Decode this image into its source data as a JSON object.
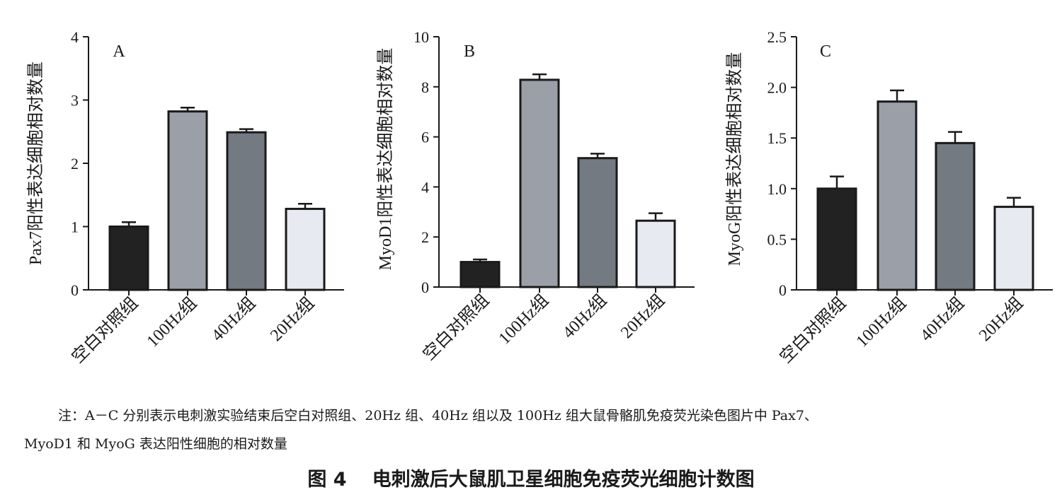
{
  "chart_data": [
    {
      "type": "bar",
      "panel_label": "A",
      "ylabel": "Pax7阳性表达细胞相对数量",
      "categories": [
        "空白对照组",
        "100Hz组",
        "40Hz组",
        "20Hz组"
      ],
      "values": [
        1.0,
        2.82,
        2.49,
        1.28
      ],
      "errors": [
        0.07,
        0.06,
        0.05,
        0.08
      ],
      "ylim": [
        0,
        4
      ],
      "yticks": [
        0,
        1,
        2,
        3,
        4
      ],
      "ytick_labels": [
        "0",
        "1",
        "2",
        "3",
        "4"
      ],
      "bar_colors": [
        "#222222",
        "#9a9fa8",
        "#747a82",
        "#e7ebf1"
      ]
    },
    {
      "type": "bar",
      "panel_label": "B",
      "ylabel": "MyoD1阳性表达细胞相对数量",
      "categories": [
        "空白对照组",
        "100Hz组",
        "40Hz组",
        "20Hz组"
      ],
      "values": [
        1.0,
        8.28,
        5.15,
        2.65
      ],
      "errors": [
        0.1,
        0.22,
        0.18,
        0.3
      ],
      "ylim": [
        0,
        10
      ],
      "yticks": [
        0,
        2,
        4,
        6,
        8,
        10
      ],
      "ytick_labels": [
        "0",
        "2",
        "4",
        "6",
        "8",
        "10"
      ],
      "bar_colors": [
        "#222222",
        "#9a9fa8",
        "#747a82",
        "#e7ebf1"
      ]
    },
    {
      "type": "bar",
      "panel_label": "C",
      "ylabel": "MyoG阳性表达细胞相对数量",
      "categories": [
        "空白对照组",
        "100Hz组",
        "40Hz组",
        "20Hz组"
      ],
      "values": [
        1.0,
        1.86,
        1.45,
        0.82
      ],
      "errors": [
        0.12,
        0.11,
        0.11,
        0.09
      ],
      "ylim": [
        0,
        2.5
      ],
      "yticks": [
        0,
        0.5,
        1,
        1.5,
        2,
        2.5
      ],
      "ytick_labels": [
        "0",
        "0.5",
        "1.0",
        "1.5",
        "2.0",
        "2.5"
      ],
      "bar_colors": [
        "#222222",
        "#9a9fa8",
        "#747a82",
        "#e7ebf1"
      ]
    }
  ],
  "note_line1": "注：A－C 分别表示电刺激实验结束后空白对照组、20Hz 组、40Hz 组以及 100Hz 组大鼠骨骼肌免疫荧光染色图片中 Pax7、",
  "note_line2": "MyoD1 和 MyoG 表达阳性细胞的相对数量",
  "caption_number": "图 4",
  "caption_title": "电刺激后大鼠肌卫星细胞免疫荧光细胞计数图"
}
